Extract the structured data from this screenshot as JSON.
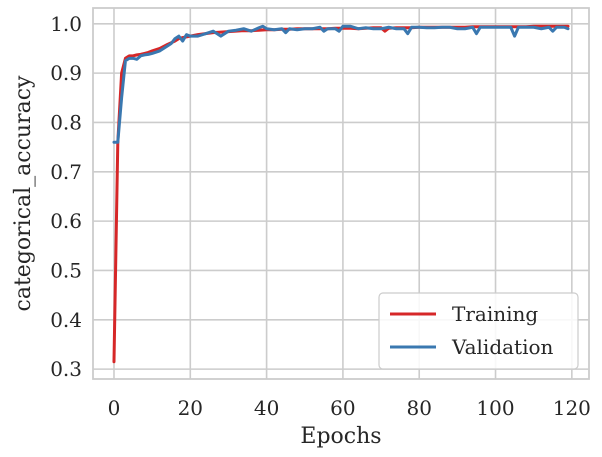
{
  "chart_data": {
    "type": "line",
    "title": "",
    "xlabel": "Epochs",
    "ylabel": "categorical_accuracy",
    "xlim": [
      -5.5,
      124.5
    ],
    "ylim": [
      0.28,
      1.032
    ],
    "xticks": [
      0,
      20,
      40,
      60,
      80,
      100,
      120
    ],
    "yticks": [
      0.3,
      0.4,
      0.5,
      0.6,
      0.7,
      0.8,
      0.9,
      1.0
    ],
    "xtick_labels": [
      "0",
      "20",
      "40",
      "60",
      "80",
      "100",
      "120"
    ],
    "ytick_labels": [
      "0.3",
      "0.4",
      "0.5",
      "0.6",
      "0.7",
      "0.8",
      "0.9",
      "1.0"
    ],
    "grid": true,
    "legend_position": "lower-right",
    "colors": {
      "training": "#d62728",
      "validation": "#3a78b0",
      "grid": "#cccccc",
      "frame": "#cccccc"
    },
    "series": [
      {
        "name": "Training",
        "x": [
          0,
          1,
          2,
          3,
          4,
          5,
          6,
          7,
          8,
          9,
          10,
          12,
          14,
          16,
          17,
          18,
          20,
          22,
          24,
          26,
          28,
          30,
          32,
          34,
          36,
          38,
          40,
          42,
          44,
          46,
          48,
          50,
          52,
          54,
          56,
          58,
          60,
          62,
          64,
          66,
          68,
          70,
          71,
          72,
          74,
          76,
          78,
          80,
          82,
          84,
          86,
          88,
          90,
          92,
          94,
          96,
          98,
          100,
          102,
          104,
          106,
          108,
          110,
          112,
          114,
          116,
          118,
          119
        ],
        "y": [
          0.315,
          0.76,
          0.9,
          0.93,
          0.935,
          0.935,
          0.937,
          0.938,
          0.94,
          0.942,
          0.945,
          0.95,
          0.958,
          0.965,
          0.97,
          0.972,
          0.975,
          0.978,
          0.98,
          0.982,
          0.983,
          0.984,
          0.985,
          0.986,
          0.986,
          0.987,
          0.988,
          0.988,
          0.989,
          0.989,
          0.99,
          0.99,
          0.99,
          0.99,
          0.99,
          0.991,
          0.991,
          0.991,
          0.99,
          0.991,
          0.992,
          0.992,
          0.985,
          0.991,
          0.992,
          0.992,
          0.992,
          0.993,
          0.993,
          0.993,
          0.993,
          0.993,
          0.993,
          0.993,
          0.994,
          0.994,
          0.994,
          0.994,
          0.994,
          0.994,
          0.994,
          0.994,
          0.995,
          0.995,
          0.995,
          0.995,
          0.995,
          0.995
        ]
      },
      {
        "name": "Validation",
        "x": [
          0,
          1,
          2,
          3,
          4,
          5,
          6,
          7,
          8,
          9,
          10,
          12,
          14,
          15,
          16,
          17,
          18,
          19,
          20,
          22,
          24,
          26,
          27,
          28,
          30,
          32,
          34,
          36,
          38,
          39,
          40,
          42,
          44,
          45,
          46,
          48,
          50,
          52,
          54,
          55,
          56,
          58,
          59,
          60,
          62,
          64,
          66,
          68,
          70,
          72,
          74,
          76,
          77,
          78,
          80,
          82,
          84,
          86,
          88,
          90,
          92,
          94,
          95,
          96,
          98,
          100,
          102,
          104,
          105,
          106,
          108,
          110,
          112,
          114,
          115,
          116,
          118,
          119
        ],
        "y": [
          0.76,
          0.76,
          0.85,
          0.925,
          0.93,
          0.93,
          0.928,
          0.935,
          0.937,
          0.938,
          0.94,
          0.945,
          0.955,
          0.96,
          0.97,
          0.975,
          0.965,
          0.978,
          0.975,
          0.975,
          0.98,
          0.985,
          0.98,
          0.975,
          0.985,
          0.987,
          0.99,
          0.985,
          0.992,
          0.995,
          0.99,
          0.988,
          0.99,
          0.982,
          0.99,
          0.988,
          0.99,
          0.99,
          0.993,
          0.985,
          0.99,
          0.99,
          0.985,
          0.995,
          0.995,
          0.99,
          0.992,
          0.99,
          0.99,
          0.993,
          0.99,
          0.99,
          0.98,
          0.993,
          0.993,
          0.992,
          0.992,
          0.993,
          0.993,
          0.99,
          0.99,
          0.993,
          0.98,
          0.993,
          0.993,
          0.993,
          0.993,
          0.993,
          0.975,
          0.993,
          0.993,
          0.993,
          0.99,
          0.993,
          0.985,
          0.993,
          0.993,
          0.99
        ]
      }
    ]
  }
}
